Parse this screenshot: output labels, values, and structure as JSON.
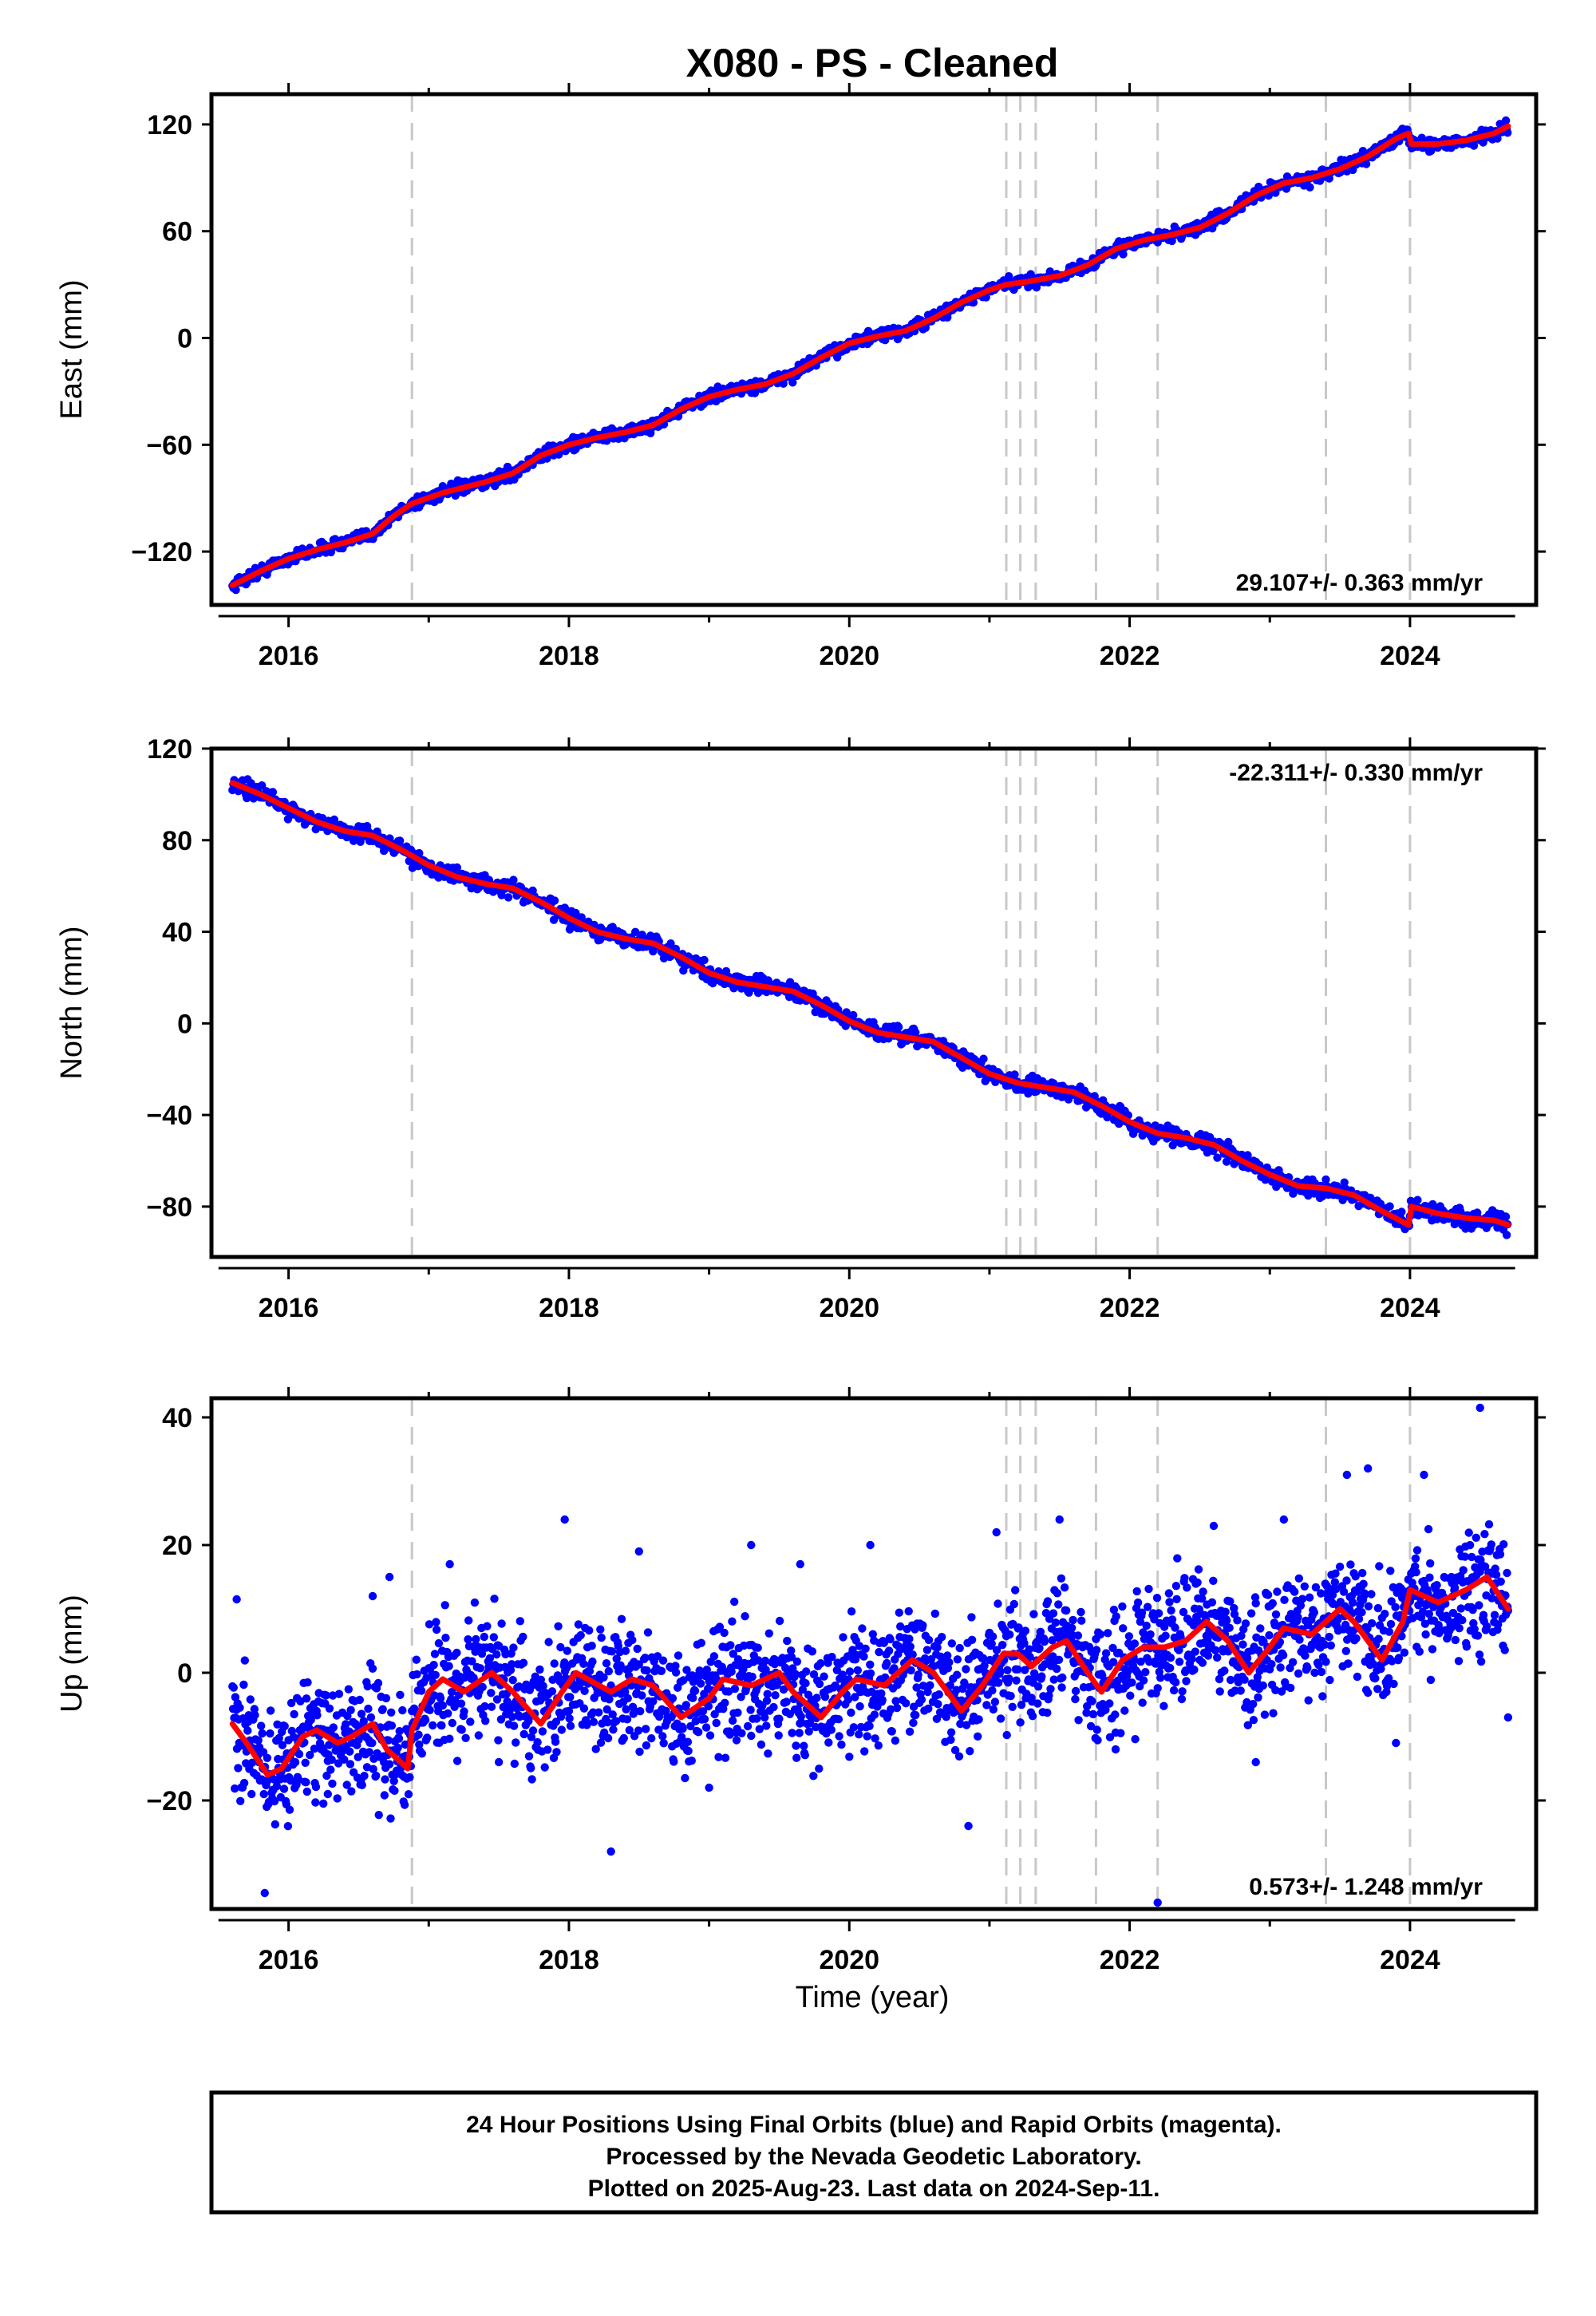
{
  "title": "X080  - PS - Cleaned",
  "colors": {
    "final": "#0000ff",
    "model": "#ff0000",
    "event_line": "#c8c8c8"
  },
  "chart_data": [
    {
      "type": "scatter",
      "component": "east",
      "ylabel": "East (mm)",
      "xlabel": "",
      "xlim": [
        2015.45,
        2024.9
      ],
      "ylim": [
        -150,
        137
      ],
      "xticks": [
        2016,
        2018,
        2020,
        2022,
        2024
      ],
      "yticks": [
        -120,
        -60,
        0,
        60,
        120
      ],
      "rate_text": "29.107+/- 0.363 mm/yr",
      "rate_position": "bottom-right",
      "event_lines": [
        2016.88,
        2021.12,
        2021.22,
        2021.33,
        2021.76,
        2022.2,
        2023.4,
        2024.0
      ],
      "trend": [
        [
          2015.6,
          -139
        ],
        [
          2015.8,
          -131
        ],
        [
          2016.0,
          -124
        ],
        [
          2016.2,
          -119
        ],
        [
          2016.4,
          -115
        ],
        [
          2016.6,
          -110
        ],
        [
          2016.75,
          -100
        ],
        [
          2016.88,
          -93
        ],
        [
          2017.1,
          -87
        ],
        [
          2017.4,
          -81
        ],
        [
          2017.6,
          -76
        ],
        [
          2017.8,
          -66
        ],
        [
          2018.0,
          -60
        ],
        [
          2018.2,
          -56
        ],
        [
          2018.4,
          -53
        ],
        [
          2018.6,
          -49
        ],
        [
          2018.8,
          -40
        ],
        [
          2019.0,
          -33
        ],
        [
          2019.2,
          -29
        ],
        [
          2019.4,
          -26
        ],
        [
          2019.6,
          -20
        ],
        [
          2019.8,
          -11
        ],
        [
          2020.0,
          -3
        ],
        [
          2020.2,
          1
        ],
        [
          2020.4,
          4
        ],
        [
          2020.6,
          11
        ],
        [
          2020.8,
          20
        ],
        [
          2021.0,
          27
        ],
        [
          2021.12,
          30
        ],
        [
          2021.3,
          32
        ],
        [
          2021.5,
          35
        ],
        [
          2021.7,
          41
        ],
        [
          2021.9,
          50
        ],
        [
          2022.1,
          55
        ],
        [
          2022.3,
          58
        ],
        [
          2022.5,
          62
        ],
        [
          2022.7,
          70
        ],
        [
          2022.9,
          80
        ],
        [
          2023.1,
          87
        ],
        [
          2023.3,
          90
        ],
        [
          2023.5,
          95
        ],
        [
          2023.7,
          102
        ],
        [
          2023.9,
          112
        ],
        [
          2023.99,
          115
        ],
        [
          2024.01,
          109
        ],
        [
          2024.2,
          109
        ],
        [
          2024.4,
          111
        ],
        [
          2024.6,
          115
        ],
        [
          2024.7,
          119
        ]
      ]
    },
    {
      "type": "scatter",
      "component": "north",
      "ylabel": "North (mm)",
      "xlabel": "",
      "xlim": [
        2015.45,
        2024.9
      ],
      "ylim": [
        -102,
        120
      ],
      "xticks": [
        2016,
        2018,
        2020,
        2022,
        2024
      ],
      "yticks": [
        -80,
        -40,
        0,
        40,
        80,
        120
      ],
      "rate_text": "-22.311+/- 0.330 mm/yr",
      "rate_position": "top-right",
      "event_lines": [
        2016.88,
        2021.12,
        2021.22,
        2021.33,
        2021.76,
        2022.2,
        2023.4,
        2024.0
      ],
      "trend": [
        [
          2015.6,
          105
        ],
        [
          2015.8,
          100
        ],
        [
          2016.0,
          94
        ],
        [
          2016.2,
          88
        ],
        [
          2016.4,
          84
        ],
        [
          2016.6,
          82
        ],
        [
          2016.8,
          76
        ],
        [
          2017.0,
          69
        ],
        [
          2017.2,
          64
        ],
        [
          2017.4,
          61
        ],
        [
          2017.6,
          59
        ],
        [
          2017.8,
          53
        ],
        [
          2018.0,
          46
        ],
        [
          2018.2,
          40
        ],
        [
          2018.4,
          37
        ],
        [
          2018.6,
          35
        ],
        [
          2018.8,
          29
        ],
        [
          2019.0,
          22
        ],
        [
          2019.2,
          18
        ],
        [
          2019.4,
          16
        ],
        [
          2019.6,
          14
        ],
        [
          2019.8,
          8
        ],
        [
          2020.0,
          1
        ],
        [
          2020.2,
          -4
        ],
        [
          2020.4,
          -6
        ],
        [
          2020.6,
          -8
        ],
        [
          2020.8,
          -15
        ],
        [
          2021.0,
          -22
        ],
        [
          2021.2,
          -26
        ],
        [
          2021.4,
          -28
        ],
        [
          2021.6,
          -30
        ],
        [
          2021.8,
          -36
        ],
        [
          2022.0,
          -43
        ],
        [
          2022.2,
          -48
        ],
        [
          2022.4,
          -50
        ],
        [
          2022.6,
          -53
        ],
        [
          2022.8,
          -60
        ],
        [
          2023.0,
          -66
        ],
        [
          2023.2,
          -71
        ],
        [
          2023.4,
          -72
        ],
        [
          2023.6,
          -75
        ],
        [
          2023.8,
          -82
        ],
        [
          2023.99,
          -88
        ],
        [
          2024.01,
          -80
        ],
        [
          2024.2,
          -83
        ],
        [
          2024.4,
          -85
        ],
        [
          2024.6,
          -86
        ],
        [
          2024.7,
          -88
        ]
      ]
    },
    {
      "type": "scatter",
      "component": "up",
      "ylabel": "Up (mm)",
      "xlabel": "Time (year)",
      "xlim": [
        2015.45,
        2024.9
      ],
      "ylim": [
        -37,
        43
      ],
      "xticks": [
        2016,
        2018,
        2020,
        2022,
        2024
      ],
      "yticks": [
        -20,
        0,
        20,
        40
      ],
      "rate_text": "0.573+/- 1.248 mm/yr",
      "rate_position": "bottom-right",
      "event_lines": [
        2016.88,
        2021.12,
        2021.22,
        2021.33,
        2021.76,
        2022.2,
        2023.4,
        2024.0
      ],
      "trend": [
        [
          2015.6,
          -8
        ],
        [
          2015.7,
          -11
        ],
        [
          2015.85,
          -16
        ],
        [
          2015.95,
          -15
        ],
        [
          2016.1,
          -10
        ],
        [
          2016.2,
          -9
        ],
        [
          2016.35,
          -11
        ],
        [
          2016.45,
          -10
        ],
        [
          2016.6,
          -8
        ],
        [
          2016.7,
          -12
        ],
        [
          2016.85,
          -15
        ],
        [
          2016.88,
          -9
        ],
        [
          2017.0,
          -3
        ],
        [
          2017.1,
          -1
        ],
        [
          2017.25,
          -3
        ],
        [
          2017.45,
          0
        ],
        [
          2017.6,
          -3
        ],
        [
          2017.8,
          -8
        ],
        [
          2017.95,
          -3
        ],
        [
          2018.05,
          0
        ],
        [
          2018.3,
          -3
        ],
        [
          2018.45,
          -1
        ],
        [
          2018.6,
          -2
        ],
        [
          2018.8,
          -7
        ],
        [
          2019.0,
          -4
        ],
        [
          2019.1,
          -1
        ],
        [
          2019.3,
          -2
        ],
        [
          2019.5,
          0
        ],
        [
          2019.6,
          -3
        ],
        [
          2019.8,
          -7
        ],
        [
          2019.95,
          -3
        ],
        [
          2020.05,
          -1
        ],
        [
          2020.25,
          -2
        ],
        [
          2020.45,
          2
        ],
        [
          2020.6,
          0
        ],
        [
          2020.8,
          -6
        ],
        [
          2020.95,
          -2
        ],
        [
          2021.1,
          3
        ],
        [
          2021.2,
          3
        ],
        [
          2021.3,
          1
        ],
        [
          2021.45,
          4
        ],
        [
          2021.55,
          5
        ],
        [
          2021.7,
          0
        ],
        [
          2021.8,
          -3
        ],
        [
          2021.95,
          2
        ],
        [
          2022.1,
          4
        ],
        [
          2022.25,
          4
        ],
        [
          2022.4,
          5
        ],
        [
          2022.55,
          8
        ],
        [
          2022.7,
          5
        ],
        [
          2022.85,
          0
        ],
        [
          2023.0,
          4
        ],
        [
          2023.1,
          7
        ],
        [
          2023.3,
          6
        ],
        [
          2023.5,
          10
        ],
        [
          2023.6,
          8
        ],
        [
          2023.8,
          2
        ],
        [
          2023.95,
          8
        ],
        [
          2024.0,
          13
        ],
        [
          2024.2,
          11
        ],
        [
          2024.4,
          13
        ],
        [
          2024.55,
          15
        ],
        [
          2024.7,
          10
        ]
      ],
      "outliers": [
        [
          2015.63,
          11.5
        ],
        [
          2015.83,
          -34.5
        ],
        [
          2016.28,
          -19
        ],
        [
          2016.6,
          12
        ],
        [
          2016.72,
          15
        ],
        [
          2017.15,
          17
        ],
        [
          2017.5,
          -14
        ],
        [
          2017.97,
          24
        ],
        [
          2018.3,
          -28
        ],
        [
          2018.5,
          19
        ],
        [
          2019.0,
          -18
        ],
        [
          2019.3,
          20
        ],
        [
          2019.65,
          17
        ],
        [
          2020.15,
          20
        ],
        [
          2020.85,
          -24
        ],
        [
          2021.05,
          22
        ],
        [
          2021.5,
          24
        ],
        [
          2021.9,
          -12
        ],
        [
          2022.2,
          -36
        ],
        [
          2022.6,
          23
        ],
        [
          2022.9,
          -14
        ],
        [
          2023.1,
          24
        ],
        [
          2023.55,
          31
        ],
        [
          2023.7,
          32
        ],
        [
          2023.9,
          -11
        ],
        [
          2024.1,
          31
        ],
        [
          2024.5,
          41.5
        ],
        [
          2024.7,
          -7
        ]
      ]
    }
  ],
  "footer": {
    "line1": "24 Hour Positions Using Final Orbits (blue) and Rapid Orbits (magenta).",
    "line2": "Processed by the Nevada Geodetic Laboratory.",
    "line3": "Plotted on 2025-Aug-23. Last data on 2024-Sep-11."
  }
}
